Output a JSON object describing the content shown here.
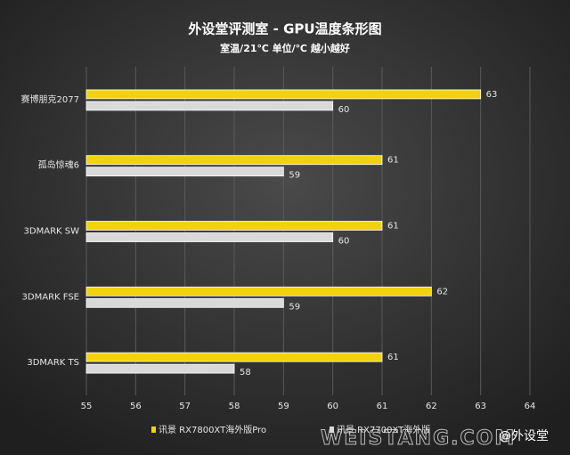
{
  "chart_data": {
    "type": "hbar",
    "title": "外设堂评测室 -   GPU温度条形图",
    "subtitle": "室温/21℃   单位/℃   越小越好",
    "categories": [
      "赛博朋克2077",
      "孤岛惊魂6",
      "3DMARK SW",
      "3DMARK FSE",
      "3DMARK TS"
    ],
    "series": [
      {
        "name": "讯景 RX7800XT海外版Pro",
        "color": "#f2d20a",
        "values": [
          63,
          61,
          61,
          62,
          61
        ]
      },
      {
        "name": "讯景 RX7700XT海外版",
        "color": "#d9d9d9",
        "values": [
          60,
          59,
          60,
          59,
          58
        ]
      }
    ],
    "xlim": [
      55,
      64
    ],
    "xticks": [
      55,
      56,
      57,
      58,
      59,
      60,
      61,
      62,
      63,
      64
    ],
    "grid": true,
    "watermark": [
      "WEISTANG.COM",
      "@外设堂"
    ]
  }
}
